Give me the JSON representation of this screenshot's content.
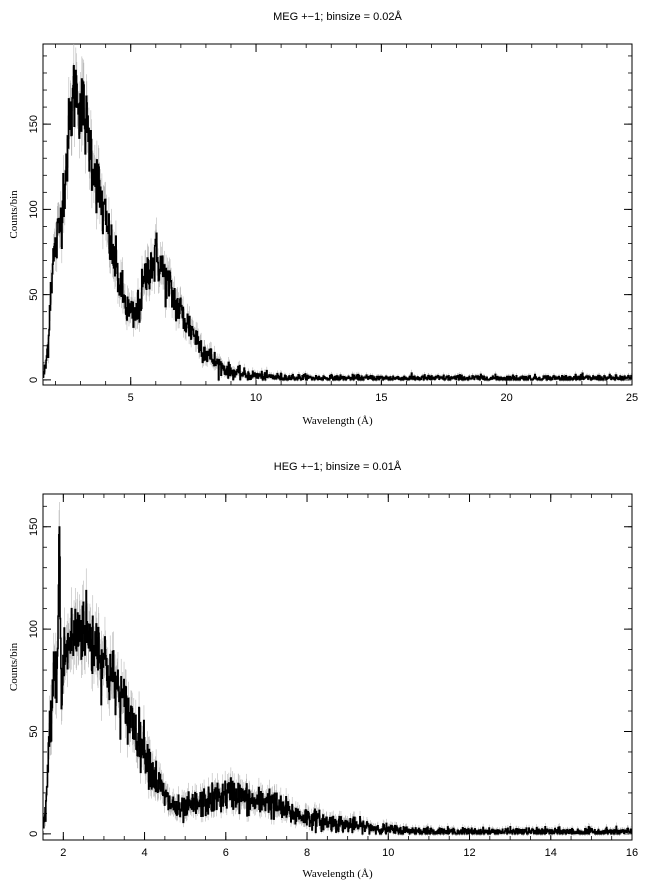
{
  "chart_data": [
    {
      "type": "line",
      "title": "MEG +−1; binsize = 0.02Å",
      "xlabel": "Wavelength (Å)",
      "ylabel": "Counts/bin",
      "xlim": [
        1.5,
        25
      ],
      "ylim": [
        -3,
        197
      ],
      "xticks": [
        5,
        10,
        15,
        20,
        25
      ],
      "yticks": [
        0,
        50,
        100,
        150
      ],
      "grid": false,
      "error_bars": true,
      "series": [
        {
          "x": [
            1.5,
            1.6,
            1.7,
            1.8,
            1.9,
            2.0,
            2.1,
            2.2,
            2.3,
            2.4,
            2.5,
            2.6,
            2.7,
            2.8,
            2.9,
            3.0,
            3.1,
            3.2,
            3.3,
            3.4,
            3.5,
            3.6,
            3.7,
            3.8,
            3.9,
            4.0,
            4.1,
            4.2,
            4.3,
            4.4,
            4.5,
            4.6,
            4.7,
            4.8,
            4.9,
            5.0,
            5.1,
            5.2,
            5.3,
            5.4,
            5.5,
            5.6,
            5.7,
            5.8,
            5.9,
            6.0,
            6.1,
            6.2,
            6.3,
            6.4,
            6.5,
            6.6,
            6.7,
            6.8,
            6.9,
            7.0,
            7.1,
            7.2,
            7.3,
            7.4,
            7.5,
            7.6,
            7.7,
            7.8,
            7.9,
            8.0,
            8.2,
            8.4,
            8.6,
            8.8,
            9.0,
            9.2,
            9.4,
            9.6,
            9.8,
            10.0,
            10.3,
            10.6,
            11.0,
            11.5,
            12,
            13,
            14,
            15,
            16,
            17,
            18,
            19,
            20,
            21,
            22,
            23,
            24,
            25
          ],
          "y": [
            2,
            8,
            22,
            55,
            70,
            78,
            85,
            95,
            110,
            125,
            140,
            155,
            165,
            172,
            168,
            160,
            158,
            150,
            142,
            135,
            128,
            120,
            112,
            105,
            98,
            92,
            85,
            78,
            72,
            66,
            60,
            54,
            48,
            44,
            40,
            38,
            36,
            38,
            42,
            48,
            55,
            60,
            66,
            70,
            68,
            72,
            70,
            66,
            62,
            58,
            55,
            52,
            48,
            45,
            42,
            40,
            36,
            34,
            32,
            30,
            28,
            25,
            22,
            20,
            18,
            16,
            13,
            10,
            8,
            6,
            5,
            4,
            3.5,
            3,
            2.5,
            2.5,
            2,
            1.8,
            1.5,
            1.3,
            1.2,
            1,
            1,
            1,
            1,
            1,
            1,
            1,
            1,
            1,
            1,
            1,
            1,
            1
          ]
        }
      ]
    },
    {
      "type": "line",
      "title": "HEG +−1; binsize = 0.01Å",
      "xlabel": "Wavelength (Å)",
      "ylabel": "Counts/bin",
      "xlim": [
        1.5,
        16
      ],
      "ylim": [
        -3,
        166
      ],
      "xticks": [
        2,
        4,
        6,
        8,
        10,
        12,
        14,
        16
      ],
      "yticks": [
        0,
        50,
        100,
        150
      ],
      "grid": false,
      "error_bars": true,
      "series": [
        {
          "x": [
            1.5,
            1.55,
            1.6,
            1.65,
            1.7,
            1.75,
            1.8,
            1.85,
            1.9,
            1.95,
            2.0,
            2.1,
            2.2,
            2.3,
            2.4,
            2.5,
            2.6,
            2.7,
            2.8,
            2.9,
            3.0,
            3.1,
            3.2,
            3.3,
            3.4,
            3.5,
            3.6,
            3.7,
            3.8,
            3.9,
            4.0,
            4.1,
            4.2,
            4.3,
            4.4,
            4.5,
            4.6,
            4.7,
            4.8,
            4.9,
            5.0,
            5.2,
            5.4,
            5.6,
            5.8,
            6.0,
            6.2,
            6.4,
            6.6,
            6.8,
            7.0,
            7.2,
            7.4,
            7.6,
            7.8,
            8.0,
            8.2,
            8.4,
            8.6,
            8.8,
            9.0,
            9.2,
            9.4,
            9.6,
            9.8,
            10.0,
            10.5,
            11.0,
            11.5,
            12,
            13,
            14,
            15,
            16
          ],
          "y": [
            2,
            10,
            25,
            45,
            60,
            75,
            80,
            78,
            150,
            60,
            85,
            90,
            95,
            98,
            100,
            102,
            98,
            92,
            95,
            88,
            85,
            80,
            76,
            72,
            68,
            62,
            58,
            55,
            50,
            45,
            42,
            36,
            30,
            26,
            22,
            18,
            15,
            14,
            12,
            11,
            12,
            14,
            15,
            16,
            18,
            19,
            20,
            18,
            16,
            15,
            17,
            14,
            12,
            10,
            9,
            8,
            7,
            6,
            5.5,
            5,
            4.5,
            4,
            3.5,
            3,
            2.5,
            2,
            1.5,
            1.2,
            1,
            1,
            1,
            1,
            1,
            1
          ]
        }
      ]
    }
  ]
}
